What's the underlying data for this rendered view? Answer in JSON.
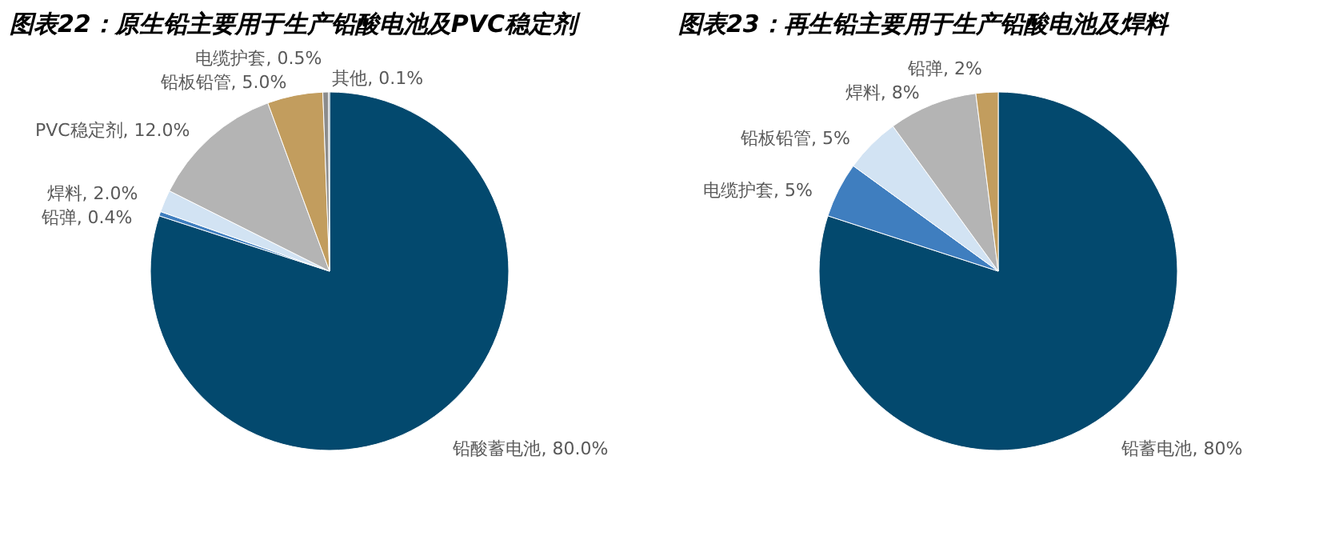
{
  "chart_data": [
    {
      "type": "pie",
      "title": "图表22：原生铅主要用于生产铅酸电池及PVC稳定剂",
      "categories": [
        "铅酸蓄电池",
        "铅弹",
        "焊料",
        "PVC稳定剂",
        "铅板铅管",
        "电缆护套",
        "其他"
      ],
      "values": [
        80,
        0.4,
        2,
        12,
        5,
        0.5,
        0.1
      ],
      "value_labels": [
        "80.0%",
        "0.4%",
        "2.0%",
        "12.0%",
        "5.0%",
        "0.5%",
        "0.1%"
      ],
      "colors": [
        "#03496e",
        "#3f7ebf",
        "#d2e3f3",
        "#b4b4b4",
        "#c29d5e",
        "#8c8c8c",
        "#5b6b78"
      ],
      "legend": false
    },
    {
      "type": "pie",
      "title": "图表23：再生铅主要用于生产铅酸电池及焊料",
      "categories": [
        "铅蓄电池",
        "电缆护套",
        "铅板铅管",
        "焊料",
        "铅弹"
      ],
      "values": [
        80,
        5,
        5,
        8,
        2
      ],
      "value_labels": [
        "80%",
        "5%",
        "5%",
        "8%",
        "2%"
      ],
      "colors": [
        "#03496e",
        "#3f7ebf",
        "#d2e3f3",
        "#b4b4b4",
        "#c29d5e"
      ],
      "legend": false
    }
  ]
}
